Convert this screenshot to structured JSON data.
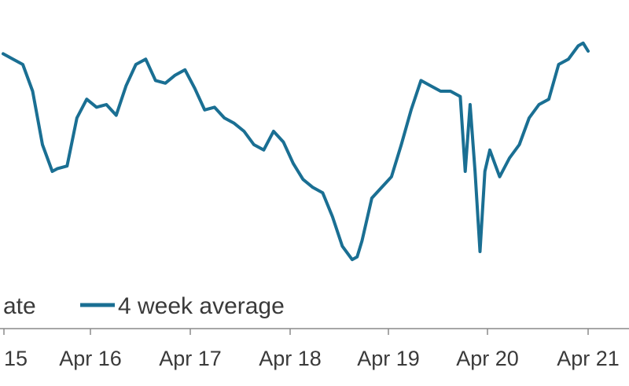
{
  "chart_data": {
    "type": "line",
    "title": "",
    "xlabel": "",
    "ylabel": "",
    "grid": false,
    "legend": {
      "placement": "bottom-left",
      "entries": [
        "ate",
        "4 week average"
      ]
    },
    "x_ticks": [
      "15",
      "Apr 16",
      "Apr 17",
      "Apr 18",
      "Apr 19",
      "Apr 20",
      "Apr 21"
    ],
    "x_range": [
      2015.05,
      2021.0
    ],
    "ylim": [
      0,
      100
    ],
    "series": [
      {
        "name": "4 week average",
        "color": "#1a6f93",
        "x": [
          2015.05,
          2015.15,
          2015.25,
          2015.35,
          2015.45,
          2015.55,
          2015.6,
          2015.7,
          2015.8,
          2015.9,
          2016.0,
          2016.1,
          2016.2,
          2016.3,
          2016.4,
          2016.5,
          2016.6,
          2016.7,
          2016.8,
          2016.9,
          2017.0,
          2017.1,
          2017.2,
          2017.3,
          2017.4,
          2017.5,
          2017.6,
          2017.7,
          2017.8,
          2017.9,
          2018.0,
          2018.1,
          2018.2,
          2018.3,
          2018.4,
          2018.5,
          2018.6,
          2018.65,
          2018.7,
          2018.8,
          2018.9,
          2019.0,
          2019.1,
          2019.2,
          2019.3,
          2019.4,
          2019.5,
          2019.6,
          2019.7,
          2019.75,
          2019.8,
          2019.85,
          2019.9,
          2019.95,
          2020.0,
          2020.05,
          2020.1,
          2020.2,
          2020.3,
          2020.4,
          2020.5,
          2020.6,
          2020.7,
          2020.8,
          2020.9,
          2020.95,
          2021.0
        ],
        "values": [
          94,
          92,
          90,
          80,
          60,
          50,
          51,
          52,
          70,
          77,
          74,
          75,
          71,
          82,
          90,
          92,
          84,
          83,
          86,
          88,
          81,
          73,
          74,
          70,
          68,
          65,
          60,
          58,
          65,
          61,
          53,
          47,
          44,
          42,
          33,
          22,
          17,
          18,
          24,
          40,
          44,
          48,
          60,
          73,
          84,
          82,
          80,
          80,
          78,
          50,
          75,
          50,
          20,
          50,
          58,
          53,
          48,
          55,
          60,
          70,
          75,
          77,
          90,
          92,
          97,
          98,
          95
        ]
      }
    ]
  }
}
